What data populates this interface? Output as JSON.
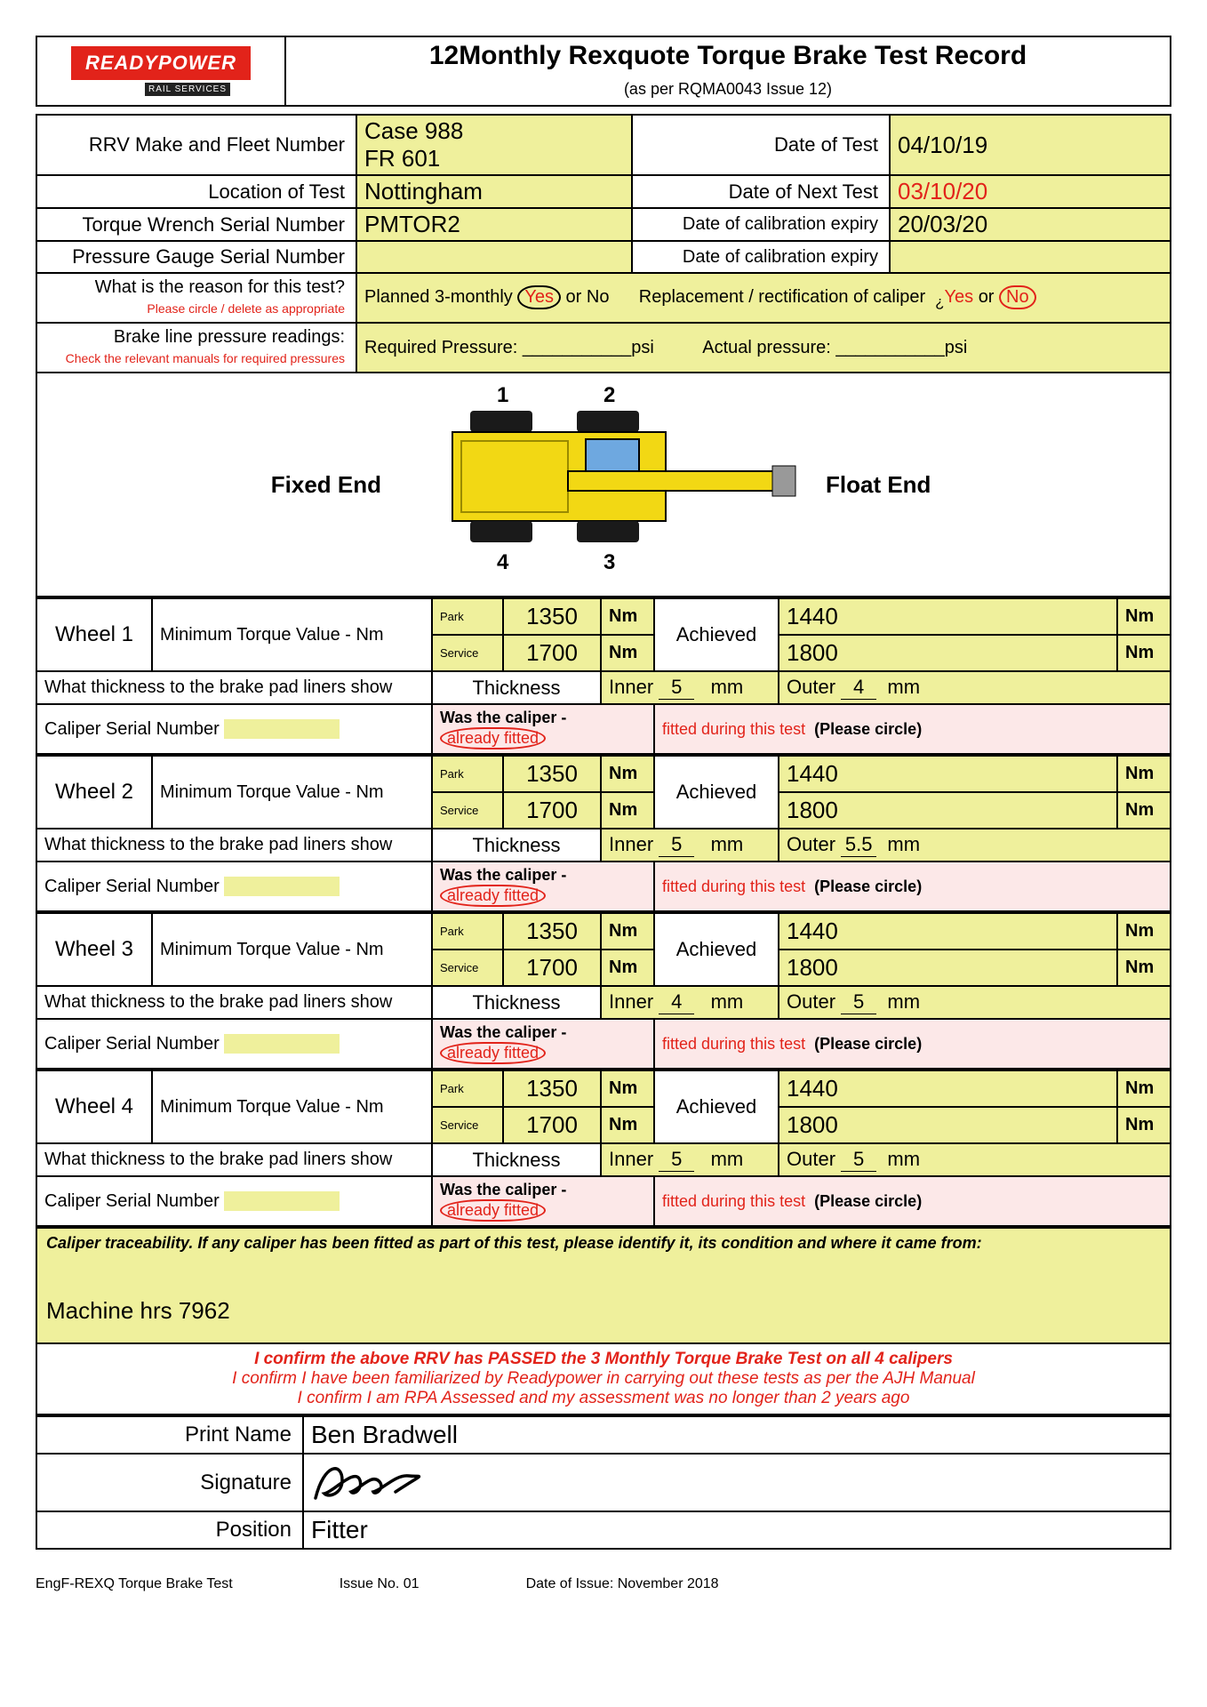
{
  "logo": {
    "brand": "READYPOWER",
    "sub": "RAIL SERVICES"
  },
  "title_prefix": "12",
  "title": "Monthly Rexquote Torque Brake Test Record",
  "subtitle": "(as per RQMA0043 Issue 12)",
  "header_rows": {
    "rrv_label": "RRV Make and Fleet Number",
    "rrv_val1": "Case 988",
    "rrv_val2": "FR 601",
    "date_test_label": "Date of Test",
    "date_test_val": "04/10/19",
    "loc_label": "Location of Test",
    "loc_val": "Nottingham",
    "next_test_label": "Date of Next Test",
    "next_test_val": "03/10/20",
    "torque_wrench_label": "Torque Wrench Serial Number",
    "torque_wrench_val": "PMTOR2",
    "torque_cal_label": "Date of calibration expiry",
    "torque_cal_val": "20/03/20",
    "press_gauge_label": "Pressure Gauge Serial Number",
    "press_gauge_val": "",
    "press_cal_label": "Date of calibration expiry",
    "press_cal_val": ""
  },
  "reason": {
    "label": "What is the reason for this test?",
    "note": "Please circle / delete as appropriate",
    "planned": "Planned 3-monthly",
    "yes": "Yes",
    "or_no": "or No",
    "replacement": "Replacement / rectification of caliper",
    "yes2": "Yes",
    "or": "or",
    "no2": "No"
  },
  "pressure": {
    "label": "Brake line pressure readings:",
    "note": "Check the relevant manuals for required pressures",
    "req": "Required Pressure:",
    "req_unit": "psi",
    "act": "Actual pressure:",
    "act_unit": "psi"
  },
  "diagram": {
    "n1": "1",
    "n2": "2",
    "n3": "3",
    "n4": "4",
    "fixed": "Fixed End",
    "float": "Float End",
    "body_color": "#f2d814",
    "wheel_color": "#1a1a1a",
    "cab_color": "#6ea8e0"
  },
  "wheel_common": {
    "min_torque": "Minimum Torque Value - Nm",
    "park": "Park",
    "service": "Service",
    "achieved": "Achieved",
    "nm": "Nm",
    "thickness_q": "What thickness to the brake pad liners show",
    "thickness": "Thickness",
    "inner": "Inner",
    "outer": "Outer",
    "mm": "mm",
    "caliper_serial": "Caliper Serial Number",
    "was_caliper": "Was the caliper -",
    "already": "already fitted",
    "fitted_during": "fitted during this test",
    "please_circle": "(Please circle)"
  },
  "wheels": [
    {
      "name": "Wheel 1",
      "park": "1350",
      "service": "1700",
      "ach_park": "1440",
      "ach_service": "1800",
      "inner": "5",
      "outer": "4"
    },
    {
      "name": "Wheel 2",
      "park": "1350",
      "service": "1700",
      "ach_park": "1440",
      "ach_service": "1800",
      "inner": "5",
      "outer": "5.5"
    },
    {
      "name": "Wheel 3",
      "park": "1350",
      "service": "1700",
      "ach_park": "1440",
      "ach_service": "1800",
      "inner": "4",
      "outer": "5"
    },
    {
      "name": "Wheel 4",
      "park": "1350",
      "service": "1700",
      "ach_park": "1440",
      "ach_service": "1800",
      "inner": "5",
      "outer": "5"
    }
  ],
  "trace": {
    "label": "Caliper traceability. If any caliper has been fitted as part of this test, please identify it, its condition and where it came from:",
    "machine_hrs": "Machine hrs 7962"
  },
  "confirm": {
    "l1": "I confirm the above RRV has PASSED the 3 Monthly Torque Brake Test on all 4 calipers",
    "l2": "I confirm I have been familiarized by Readypower in carrying out these tests as per the AJH Manual",
    "l3": "I confirm I am RPA Assessed and my assessment was no longer than 2 years ago"
  },
  "sign": {
    "print_label": "Print Name",
    "print_val": "Ben Bradwell",
    "sig_label": "Signature",
    "pos_label": "Position",
    "pos_val": "Fitter"
  },
  "footer": {
    "f1": "EngF-REXQ Torque Brake Test",
    "f2": "Issue No. 01",
    "f3": "Date of Issue: November 2018"
  }
}
